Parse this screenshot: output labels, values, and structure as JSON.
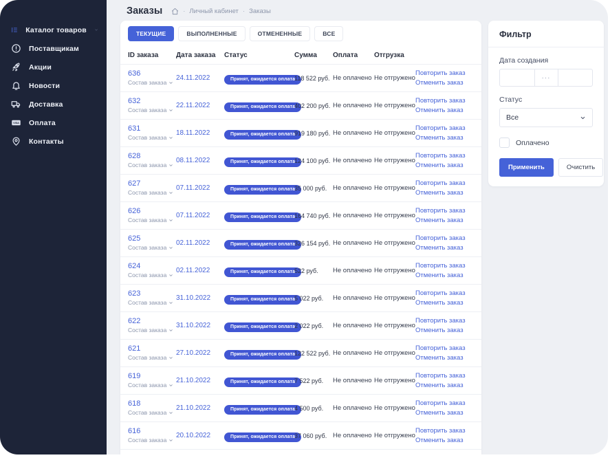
{
  "colors": {
    "accent": "#4562d8",
    "badge": "#4156d3",
    "sidebar_bg": "#1d2438",
    "page_bg": "#eef0f4"
  },
  "sidebar": {
    "items": [
      {
        "key": "catalog",
        "icon": "catalog-icon",
        "label": "Каталог товаров",
        "active": true,
        "has_chevron": true
      },
      {
        "key": "suppliers",
        "icon": "info-circle-icon",
        "label": "Поставщикам"
      },
      {
        "key": "promos",
        "icon": "rocket-icon",
        "label": "Акции"
      },
      {
        "key": "news",
        "icon": "bell-icon",
        "label": "Новости"
      },
      {
        "key": "delivery",
        "icon": "truck-icon",
        "label": "Доставка"
      },
      {
        "key": "payment",
        "icon": "visa-card-icon",
        "label": "Оплата"
      },
      {
        "key": "contacts",
        "icon": "map-pin-icon",
        "label": "Контакты"
      }
    ]
  },
  "header": {
    "title": "Заказы",
    "breadcrumb": [
      "Личный кабинет",
      "Заказы"
    ],
    "breadcrumb_separator": "·"
  },
  "tabs": [
    {
      "key": "current",
      "label": "ТЕКУЩИЕ",
      "active": true
    },
    {
      "key": "completed",
      "label": "ВЫПОЛНЕННЫЕ"
    },
    {
      "key": "cancelled",
      "label": "ОТМЕНЕННЫЕ"
    },
    {
      "key": "all",
      "label": "ВСЕ"
    }
  ],
  "table": {
    "columns": [
      "ID заказа",
      "Дата заказа",
      "Статус",
      "Сумма",
      "Оплата",
      "Отгрузка"
    ],
    "row_common": {
      "composition": "Состав заказа",
      "status": "Принят, ожидается оплата",
      "payment": "Не оплачено",
      "shipment": "Не отгружено",
      "repeat": "Повторить заказ",
      "cancel": "Отменить заказ"
    },
    "rows": [
      {
        "id": "636",
        "date": "24.11.2022",
        "sum": "118 522 руб."
      },
      {
        "id": "632",
        "date": "22.11.2022",
        "sum": "402 200 руб."
      },
      {
        "id": "631",
        "date": "18.11.2022",
        "sum": "919 180 руб."
      },
      {
        "id": "628",
        "date": "08.11.2022",
        "sum": "124 100 руб."
      },
      {
        "id": "627",
        "date": "07.11.2022",
        "sum": "35 000 руб."
      },
      {
        "id": "626",
        "date": "07.11.2022",
        "sum": "164 740 руб."
      },
      {
        "id": "625",
        "date": "02.11.2022",
        "sum": "326 154 руб."
      },
      {
        "id": "624",
        "date": "02.11.2022",
        "sum": "522 руб."
      },
      {
        "id": "623",
        "date": "31.10.2022",
        "sum": "5 022 руб."
      },
      {
        "id": "622",
        "date": "31.10.2022",
        "sum": "2 022 руб."
      },
      {
        "id": "621",
        "date": "27.10.2022",
        "sum": "122 522 руб."
      },
      {
        "id": "619",
        "date": "21.10.2022",
        "sum": "7 522 руб."
      },
      {
        "id": "618",
        "date": "21.10.2022",
        "sum": "4 500 руб."
      },
      {
        "id": "616",
        "date": "20.10.2022",
        "sum": "37 060 руб."
      }
    ]
  },
  "filter": {
    "title": "Фильтр",
    "date_label": "Дата создания",
    "range_separator": "···",
    "status_label": "Статус",
    "status_value": "Все",
    "checkbox_label": "Оплачено",
    "apply_label": "Применить",
    "clear_label": "Очистить"
  }
}
